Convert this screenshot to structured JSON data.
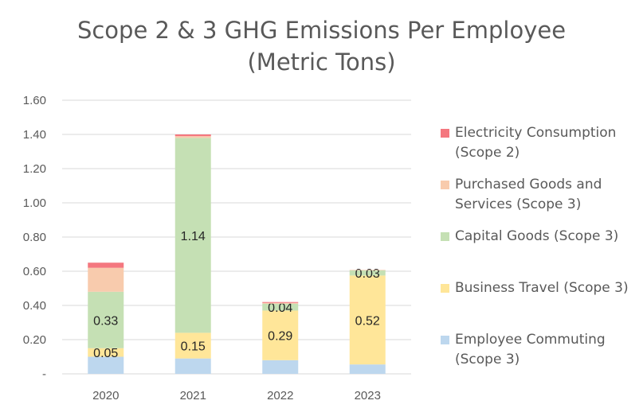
{
  "chart_data": {
    "type": "bar",
    "stacked": true,
    "title": [
      "Scope 2 & 3 GHG Emissions Per Employee",
      "(Metric Tons)"
    ],
    "categories": [
      "2020",
      "2021",
      "2022",
      "2023"
    ],
    "ylim": [
      0,
      1.6
    ],
    "yticks": [
      "-",
      "0.20",
      "0.40",
      "0.60",
      "0.80",
      "1.00",
      "1.20",
      "1.40",
      "1.60"
    ],
    "grid": true,
    "legend_position": "right",
    "series": [
      {
        "name": "Employee Commuting (Scope 3)",
        "color": "#bdd7ee",
        "values": [
          0.1,
          0.09,
          0.08,
          0.055
        ],
        "labels": [
          "",
          "",
          "",
          ""
        ]
      },
      {
        "name": "Business Travel (Scope 3)",
        "color": "#ffe699",
        "values": [
          0.05,
          0.15,
          0.29,
          0.52
        ],
        "labels": [
          "0.05",
          "0.15",
          "0.29",
          "0.52"
        ]
      },
      {
        "name": "Capital Goods (Scope 3)",
        "color": "#c5e0b4",
        "values": [
          0.33,
          1.14,
          0.04,
          0.03
        ],
        "labels": [
          "0.33",
          "1.14",
          "0.04",
          "0.03"
        ]
      },
      {
        "name": "Purchased Goods and Services (Scope 3)",
        "color": "#f8cbad",
        "values": [
          0.14,
          0.01,
          0.005,
          0.003
        ],
        "labels": [
          "",
          "",
          "",
          ""
        ]
      },
      {
        "name": "Electricity Consumption (Scope 2)",
        "color": "#f4777f",
        "values": [
          0.03,
          0.01,
          0.005,
          0.0
        ],
        "labels": [
          "",
          "",
          "",
          ""
        ]
      }
    ],
    "legend": [
      {
        "lines": [
          "Electricity Consumption",
          "(Scope 2)"
        ],
        "color": "#f4777f"
      },
      {
        "lines": [
          "Purchased Goods and",
          "Services (Scope 3)"
        ],
        "color": "#f8cbad"
      },
      {
        "lines": [
          "Capital Goods (Scope 3)"
        ],
        "color": "#c5e0b4"
      },
      {
        "lines": [
          "Business Travel (Scope 3)"
        ],
        "color": "#ffe699"
      },
      {
        "lines": [
          "Employee Commuting",
          "(Scope 3)"
        ],
        "color": "#bdd7ee"
      }
    ]
  }
}
